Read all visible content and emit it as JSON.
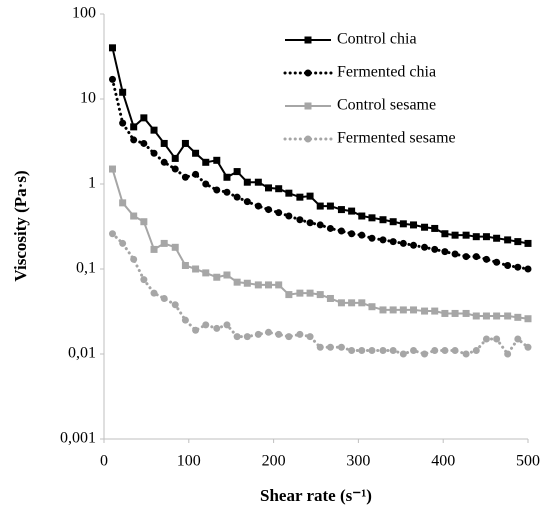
{
  "chart_data": {
    "type": "line",
    "x_label": "Shear rate (s⁻¹)",
    "y_label": "Viscosity (Pa·s)",
    "xlim": [
      0,
      500
    ],
    "xticks": [
      0,
      100,
      200,
      300,
      400,
      500
    ],
    "ylim": [
      0.001,
      100
    ],
    "yticks": [
      {
        "value": 0.001,
        "label": "0,001"
      },
      {
        "value": 0.01,
        "label": "0,01"
      },
      {
        "value": 0.1,
        "label": "0,1"
      },
      1,
      10,
      100
    ],
    "y_scale": "log",
    "legend": "upper right",
    "x": [
      10,
      22,
      35,
      47,
      59,
      71,
      84,
      96,
      108,
      120,
      133,
      145,
      157,
      169,
      182,
      194,
      206,
      218,
      231,
      243,
      255,
      267,
      280,
      292,
      304,
      316,
      329,
      341,
      353,
      365,
      378,
      390,
      402,
      414,
      427,
      439,
      451,
      463,
      476,
      488,
      500
    ],
    "series": [
      {
        "name": "Control chia",
        "color": "#000000",
        "marker": "square",
        "line_style": "solid",
        "values": [
          40,
          12,
          4.7,
          6,
          4.3,
          3,
          2,
          3,
          2.3,
          1.8,
          1.9,
          1.2,
          1.4,
          1.05,
          1.05,
          0.9,
          0.88,
          0.78,
          0.7,
          0.72,
          0.55,
          0.55,
          0.5,
          0.48,
          0.42,
          0.4,
          0.38,
          0.36,
          0.34,
          0.33,
          0.31,
          0.3,
          0.26,
          0.25,
          0.25,
          0.24,
          0.24,
          0.23,
          0.22,
          0.21,
          0.2
        ]
      },
      {
        "name": "Fermented chia",
        "color": "#000000",
        "marker": "circle",
        "line_style": "dotted",
        "values": [
          17,
          5.2,
          3.3,
          3,
          2.3,
          1.8,
          1.5,
          1.2,
          1.3,
          1,
          0.85,
          0.8,
          0.7,
          0.62,
          0.55,
          0.5,
          0.46,
          0.42,
          0.38,
          0.35,
          0.33,
          0.3,
          0.28,
          0.26,
          0.25,
          0.23,
          0.22,
          0.21,
          0.2,
          0.19,
          0.18,
          0.17,
          0.16,
          0.15,
          0.14,
          0.14,
          0.13,
          0.12,
          0.11,
          0.105,
          0.1
        ]
      },
      {
        "name": "Control sesame",
        "color": "#a6a6a6",
        "marker": "square",
        "line_style": "solid",
        "values": [
          1.5,
          0.6,
          0.42,
          0.36,
          0.17,
          0.2,
          0.18,
          0.11,
          0.1,
          0.09,
          0.08,
          0.085,
          0.07,
          0.068,
          0.065,
          0.065,
          0.065,
          0.05,
          0.052,
          0.052,
          0.05,
          0.045,
          0.04,
          0.04,
          0.04,
          0.036,
          0.033,
          0.033,
          0.033,
          0.033,
          0.032,
          0.032,
          0.03,
          0.03,
          0.03,
          0.028,
          0.028,
          0.028,
          0.028,
          0.027,
          0.026
        ]
      },
      {
        "name": "Fermented sesame",
        "color": "#a6a6a6",
        "marker": "circle",
        "line_style": "dotted",
        "values": [
          0.26,
          0.2,
          0.13,
          0.075,
          0.052,
          0.045,
          0.038,
          0.025,
          0.019,
          0.022,
          0.02,
          0.022,
          0.016,
          0.016,
          0.017,
          0.018,
          0.017,
          0.016,
          0.017,
          0.016,
          0.012,
          0.012,
          0.012,
          0.011,
          0.011,
          0.011,
          0.011,
          0.011,
          0.01,
          0.011,
          0.01,
          0.011,
          0.011,
          0.011,
          0.01,
          0.011,
          0.015,
          0.015,
          0.01,
          0.015,
          0.012
        ]
      }
    ]
  }
}
